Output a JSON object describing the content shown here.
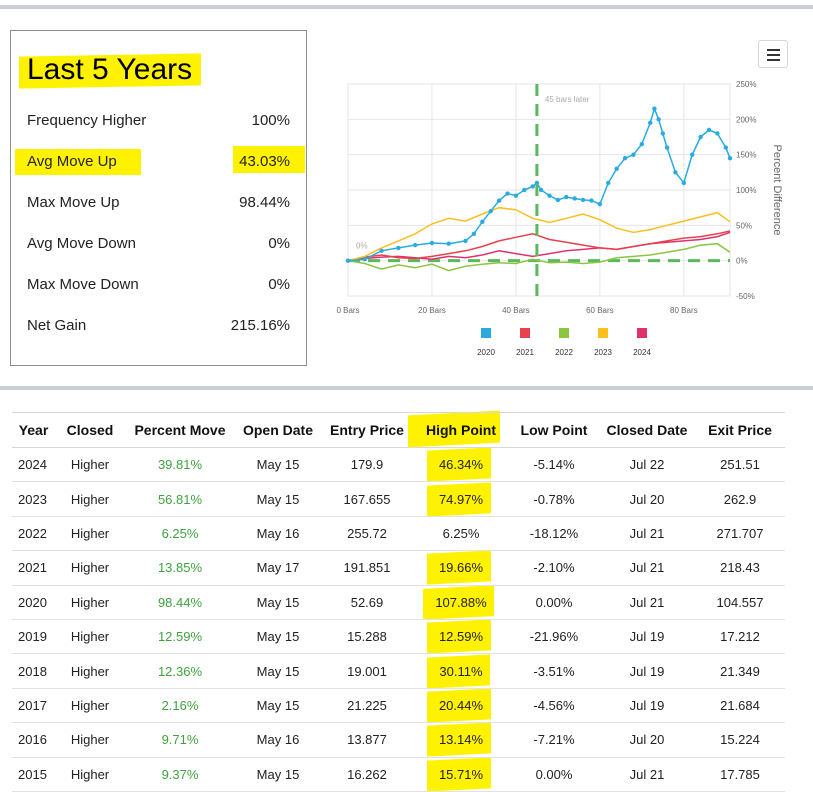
{
  "stats": {
    "title": "Last 5 Years",
    "rows": [
      {
        "label": "Frequency Higher",
        "value": "100%"
      },
      {
        "label": "Avg Move Up",
        "value": "43.03%"
      },
      {
        "label": "Max Move Up",
        "value": "98.44%"
      },
      {
        "label": "Avg Move Down",
        "value": "0%"
      },
      {
        "label": "Max Move Down",
        "value": "0%"
      },
      {
        "label": "Net Gain",
        "value": "215.16%"
      }
    ],
    "highlight_color": "#fff200"
  },
  "chart_data": {
    "type": "line",
    "x_ticks": [
      "0 Bars",
      "20 Bars",
      "40 Bars",
      "60 Bars",
      "80 Bars"
    ],
    "xlim": [
      0,
      91
    ],
    "ylim": [
      -50,
      250
    ],
    "y_ticks": [
      "-50%",
      "0%",
      "50%",
      "100%",
      "150%",
      "200%",
      "250%"
    ],
    "ylabel": "Percent Difference",
    "grid": true,
    "annotation": {
      "label": "45 bars later",
      "x": 45
    },
    "zero_label": "0%",
    "legend_position": "bottom",
    "series": [
      {
        "name": "2020",
        "color": "#29abe2",
        "x": [
          0,
          4,
          8,
          12,
          16,
          20,
          24,
          28,
          30,
          32,
          34,
          36,
          38,
          40,
          42,
          44,
          45,
          46,
          48,
          50,
          52,
          54,
          56,
          58,
          60,
          62,
          64,
          66,
          68,
          70,
          72,
          73,
          74,
          75,
          76,
          78,
          80,
          82,
          84,
          86,
          88,
          90,
          91
        ],
        "y": [
          0,
          2,
          14,
          18,
          22,
          25,
          24,
          28,
          38,
          55,
          70,
          85,
          95,
          92,
          100,
          105,
          110,
          100,
          92,
          86,
          90,
          88,
          86,
          85,
          80,
          110,
          130,
          145,
          150,
          165,
          195,
          215,
          200,
          180,
          160,
          125,
          110,
          150,
          175,
          185,
          180,
          160,
          145
        ]
      },
      {
        "name": "2021",
        "color": "#e8404c",
        "x": [
          0,
          4,
          8,
          12,
          16,
          20,
          24,
          28,
          32,
          36,
          40,
          44,
          48,
          52,
          56,
          60,
          64,
          68,
          72,
          76,
          80,
          84,
          88,
          91
        ],
        "y": [
          0,
          5,
          8,
          4,
          3,
          6,
          10,
          14,
          20,
          28,
          33,
          38,
          30,
          26,
          22,
          18,
          16,
          20,
          24,
          28,
          32,
          34,
          38,
          42
        ]
      },
      {
        "name": "2022",
        "color": "#8cc63f",
        "x": [
          0,
          4,
          8,
          12,
          16,
          20,
          24,
          28,
          32,
          36,
          40,
          44,
          48,
          52,
          56,
          60,
          64,
          68,
          72,
          76,
          80,
          84,
          88,
          91
        ],
        "y": [
          0,
          -4,
          -12,
          -6,
          -10,
          -5,
          -14,
          -8,
          -5,
          -3,
          -4,
          2,
          -3,
          -2,
          -4,
          -2,
          4,
          6,
          8,
          12,
          16,
          22,
          24,
          12
        ]
      },
      {
        "name": "2023",
        "color": "#fcbf1e",
        "x": [
          0,
          4,
          8,
          12,
          16,
          20,
          24,
          28,
          32,
          36,
          40,
          44,
          48,
          52,
          56,
          60,
          64,
          68,
          72,
          76,
          80,
          84,
          88,
          91
        ],
        "y": [
          0,
          6,
          18,
          28,
          38,
          52,
          60,
          56,
          66,
          75,
          72,
          60,
          54,
          60,
          66,
          58,
          46,
          40,
          44,
          50,
          56,
          62,
          68,
          55
        ]
      },
      {
        "name": "2024",
        "color": "#e0306e",
        "x": [
          0,
          4,
          8,
          12,
          16,
          20,
          24,
          28,
          32,
          36,
          40,
          44,
          48,
          52,
          56,
          60,
          64,
          68,
          72,
          76,
          80,
          84,
          88,
          91
        ],
        "y": [
          0,
          3,
          5,
          6,
          4,
          2,
          6,
          4,
          8,
          14,
          10,
          6,
          10,
          14,
          16,
          18,
          16,
          20,
          24,
          26,
          28,
          30,
          34,
          40
        ]
      }
    ]
  },
  "table": {
    "headers": [
      "Year",
      "Closed",
      "Percent Move",
      "Open Date",
      "Entry Price",
      "High Point",
      "Low Point",
      "Closed Date",
      "Exit Price"
    ],
    "rows": [
      [
        "2024",
        "Higher",
        "39.81%",
        "May 15",
        "179.9",
        "46.34%",
        "-5.14%",
        "Jul 22",
        "251.51"
      ],
      [
        "2023",
        "Higher",
        "56.81%",
        "May 15",
        "167.655",
        "74.97%",
        "-0.78%",
        "Jul 20",
        "262.9"
      ],
      [
        "2022",
        "Higher",
        "6.25%",
        "May 16",
        "255.72",
        "6.25%",
        "-18.12%",
        "Jul 21",
        "271.707"
      ],
      [
        "2021",
        "Higher",
        "13.85%",
        "May 17",
        "191.851",
        "19.66%",
        "-2.10%",
        "Jul 21",
        "218.43"
      ],
      [
        "2020",
        "Higher",
        "98.44%",
        "May 15",
        "52.69",
        "107.88%",
        "0.00%",
        "Jul 21",
        "104.557"
      ],
      [
        "2019",
        "Higher",
        "12.59%",
        "May 15",
        "15.288",
        "12.59%",
        "-21.96%",
        "Jul 19",
        "17.212"
      ],
      [
        "2018",
        "Higher",
        "12.36%",
        "May 15",
        "19.001",
        "30.11%",
        "-3.51%",
        "Jul 19",
        "21.349"
      ],
      [
        "2017",
        "Higher",
        "2.16%",
        "May 15",
        "21.225",
        "20.44%",
        "-4.56%",
        "Jul 19",
        "21.684"
      ],
      [
        "2016",
        "Higher",
        "9.71%",
        "May 16",
        "13.877",
        "13.14%",
        "-7.21%",
        "Jul 20",
        "15.224"
      ],
      [
        "2015",
        "Higher",
        "9.37%",
        "May 15",
        "16.262",
        "15.71%",
        "0.00%",
        "Jul 21",
        "17.785"
      ]
    ],
    "highlighted_rows": [
      "2024",
      "2023",
      "2021",
      "2020",
      "2019",
      "2018",
      "2017",
      "2016",
      "2015"
    ],
    "positive_color": "#3ea33e"
  }
}
